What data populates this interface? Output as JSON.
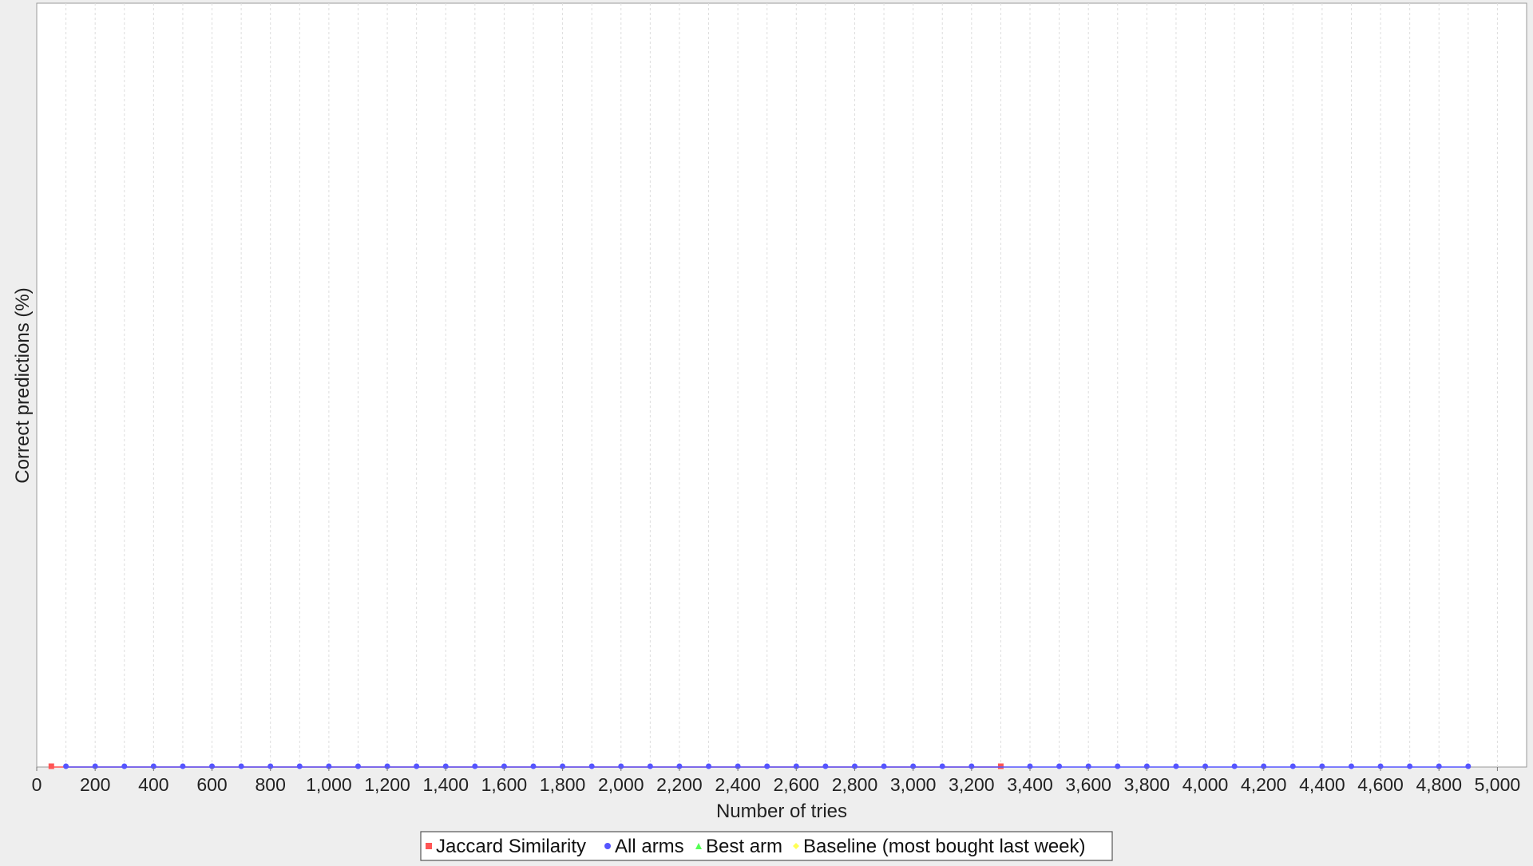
{
  "chart_data": {
    "type": "line",
    "title": "",
    "xlabel": "Number of tries",
    "ylabel": "Correct predictions (%)",
    "xlim": [
      0,
      5100
    ],
    "ylim": [
      0,
      100
    ],
    "x_ticks": [
      0,
      200,
      400,
      600,
      800,
      1000,
      1200,
      1400,
      1600,
      1800,
      2000,
      2200,
      2400,
      2600,
      2800,
      3000,
      3200,
      3400,
      3600,
      3800,
      4000,
      4200,
      4400,
      4600,
      4800,
      5000
    ],
    "x_tick_labels": [
      "0",
      "200",
      "400",
      "600",
      "800",
      "1,000",
      "1,200",
      "1,400",
      "1,600",
      "1,800",
      "2,000",
      "2,200",
      "2,400",
      "2,600",
      "2,800",
      "3,000",
      "3,200",
      "3,400",
      "3,600",
      "3,800",
      "4,000",
      "4,200",
      "4,400",
      "4,600",
      "4,800",
      "5,000"
    ],
    "grid": true,
    "legend_position": "bottom-center",
    "series": [
      {
        "name": "Jaccard Similarity",
        "color": "#ff5555",
        "marker": "square",
        "x": [
          50,
          3300
        ],
        "y": [
          0,
          0
        ]
      },
      {
        "name": "All arms",
        "color": "#5555ff",
        "marker": "circle",
        "x": [
          100,
          200,
          300,
          400,
          500,
          600,
          700,
          800,
          900,
          1000,
          1100,
          1200,
          1300,
          1400,
          1500,
          1600,
          1700,
          1800,
          1900,
          2000,
          2100,
          2200,
          2300,
          2400,
          2500,
          2600,
          2700,
          2800,
          2900,
          3000,
          3100,
          3200,
          3400,
          3500,
          3600,
          3700,
          3800,
          3900,
          4000,
          4100,
          4200,
          4300,
          4400,
          4500,
          4600,
          4700,
          4800,
          4900
        ],
        "y": [
          0,
          0,
          0,
          0,
          0,
          0,
          0,
          0,
          0,
          0,
          0,
          0,
          0,
          0,
          0,
          0,
          0,
          0,
          0,
          0,
          0,
          0,
          0,
          0,
          0,
          0,
          0,
          0,
          0,
          0,
          0,
          0,
          0,
          0,
          0,
          0,
          0,
          0,
          0,
          0,
          0,
          0,
          0,
          0,
          0,
          0,
          0,
          0
        ]
      },
      {
        "name": "Best arm",
        "color": "#55ff55",
        "marker": "triangle",
        "x": [],
        "y": []
      },
      {
        "name": "Baseline (most bought last week)",
        "color": "#ffff55",
        "marker": "diamond",
        "x": [],
        "y": []
      }
    ]
  }
}
